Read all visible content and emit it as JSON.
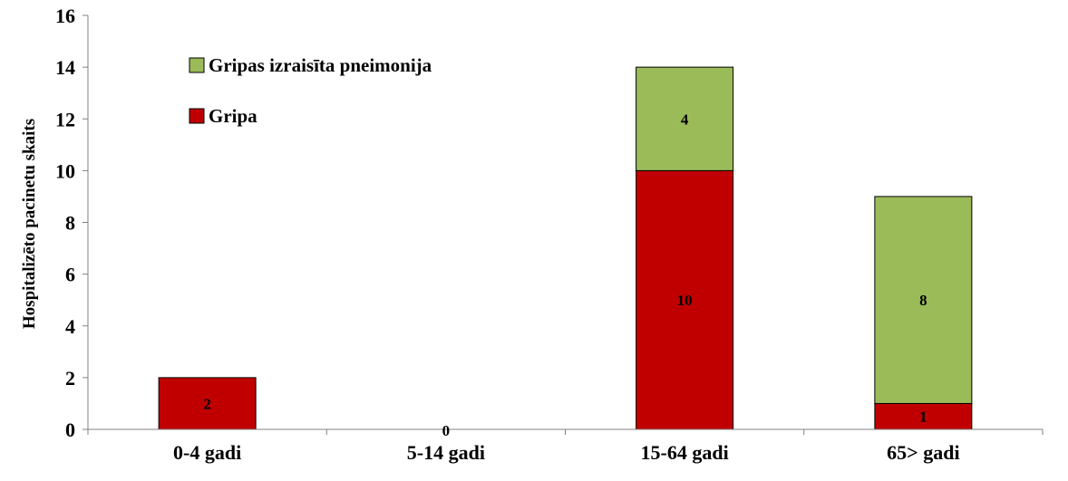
{
  "chart_data": {
    "type": "bar",
    "stacked": true,
    "title": "",
    "xlabel": "",
    "ylabel": "Hospitalizēto pacinetu skaits",
    "ylim": [
      0,
      16
    ],
    "yticks": [
      0,
      2,
      4,
      6,
      8,
      10,
      12,
      14,
      16
    ],
    "grid": false,
    "legend_position": "top-left",
    "categories": [
      "0-4 gadi",
      "5-14 gadi",
      "15-64 gadi",
      "65> gadi"
    ],
    "series": [
      {
        "name": "Gripa",
        "color": "#c00000",
        "values": [
          2,
          0,
          10,
          1
        ]
      },
      {
        "name": "Gripas izraisīta pneimonija",
        "color": "#9bbb59",
        "values": [
          0,
          0,
          4,
          8
        ]
      }
    ],
    "data_labels": [
      {
        "category": "0-4 gadi",
        "series": "Gripa",
        "text": "2"
      },
      {
        "category": "5-14 gadi",
        "series": "Gripa",
        "text": "0"
      },
      {
        "category": "15-64 gadi",
        "series": "Gripa",
        "text": "10"
      },
      {
        "category": "15-64 gadi",
        "series": "Gripas izraisīta pneimonija",
        "text": "4"
      },
      {
        "category": "65> gadi",
        "series": "Gripa",
        "text": "1"
      },
      {
        "category": "65> gadi",
        "series": "Gripas izraisīta pneimonija",
        "text": "8"
      }
    ],
    "legend_order": [
      "Gripas izraisīta pneimonija",
      "Gripa"
    ]
  }
}
